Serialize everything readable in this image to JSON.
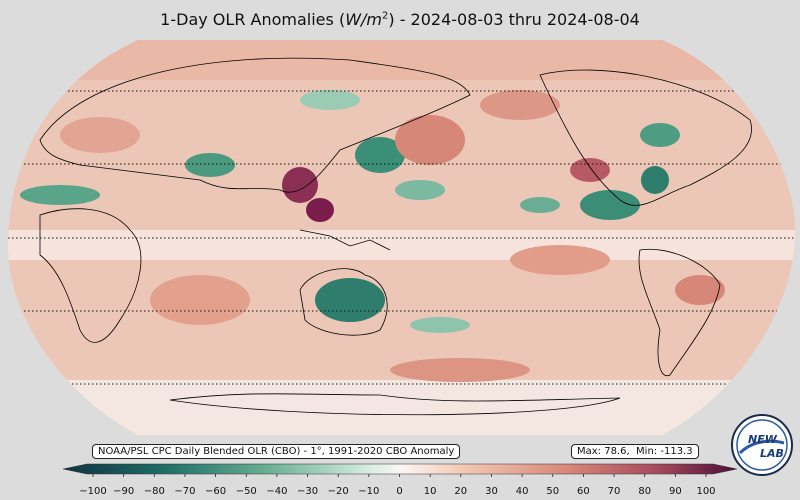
{
  "title_parts": {
    "prefix": "1-Day OLR Anomalies (",
    "unit_base": "W/m",
    "unit_exp": "2",
    "suffix": ") - 2024-08-03 thru 2024-08-04"
  },
  "source_label": "NOAA/PSL CPC Daily Blended OLR (CBO) - 1°, 1991-2020 CBO Anomaly",
  "stats": {
    "max_label": "Max:",
    "max_value": "78.6",
    "min_label": "Min:",
    "min_value": "-113.3"
  },
  "logo": {
    "line1": "NEW",
    "line2": "LAB"
  },
  "colorbar": {
    "ticks": [
      "−100",
      "−90",
      "−80",
      "−70",
      "−60",
      "−50",
      "−40",
      "−30",
      "−20",
      "−10",
      "0",
      "10",
      "20",
      "30",
      "40",
      "50",
      "60",
      "70",
      "80",
      "90",
      "100"
    ],
    "negative_color": "#1f5f5b",
    "mid_color": "#faf6f4",
    "positive_color": "#7a1d4a"
  }
}
